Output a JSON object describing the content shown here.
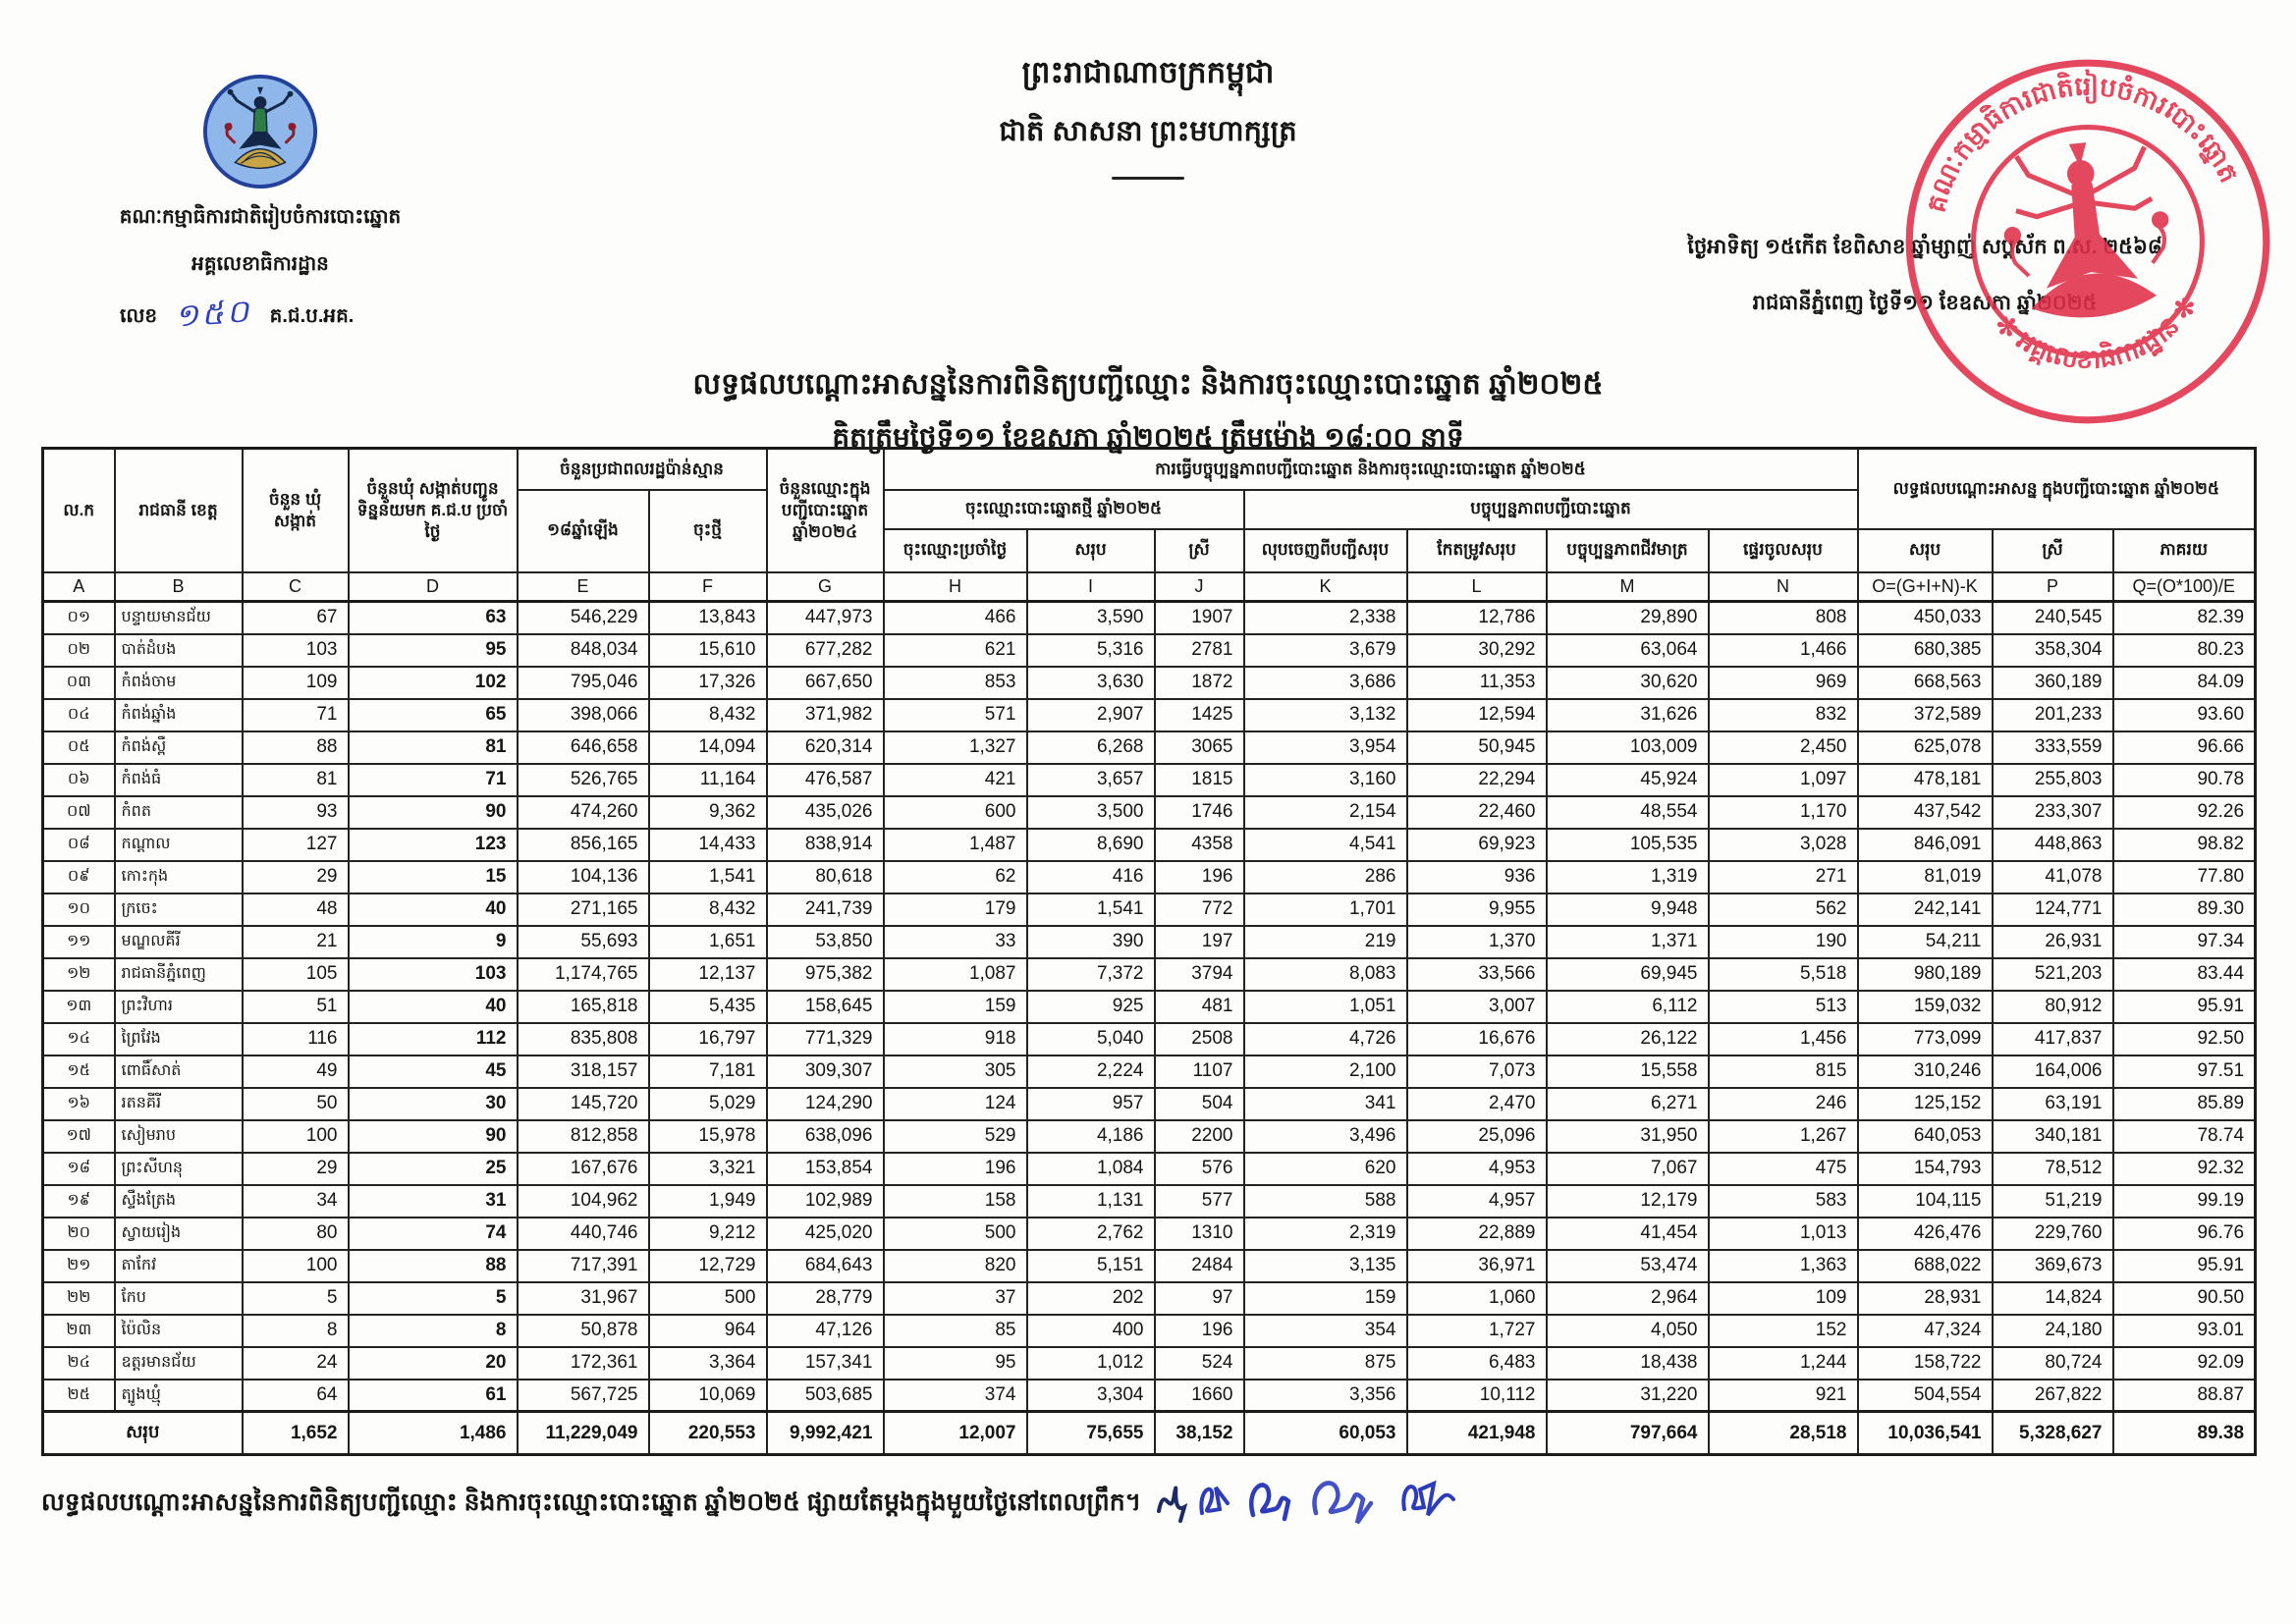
{
  "page": {
    "kingdom": {
      "line1": "ព្រះរាជាណាចក្រកម្ពុជា",
      "line2": "ជាតិ សាសនា ព្រះមហាក្សត្រ"
    },
    "agency": {
      "name": "គណៈកម្មាធិការជាតិរៀបចំការបោះឆ្នោត",
      "department": "អគ្គលេខាធិការដ្ឋាន",
      "ref_label": "លេខ",
      "ref_number": "១៥០",
      "ref_suffix": "គ.ជ.ប.អគ."
    },
    "dateline": {
      "line1": "ថ្ងៃអាទិត្យ ១៥កើត ខែពិសាខ ឆ្នាំម្សាញ់ សប្តស័ក ព.ស. ២៥៦៨",
      "line2": "រាជធានីភ្នំពេញ ថ្ងៃទី១១ ខែឧសភា ឆ្នាំ២០២៥"
    },
    "title": {
      "line1": "លទ្ធផលបណ្ដោះអាសន្ននៃការពិនិត្យបញ្ជីឈ្មោះ និងការចុះឈ្មោះបោះឆ្នោត ឆ្នាំ២០២៥",
      "line2": "គិតត្រឹមថ្ងៃទី១១ ខែឧសភា ឆ្នាំ២០២៥ ត្រឹមម៉ោង ១៨:០០ នាទី"
    },
    "stamp": {
      "ring_text_top": "គណៈកម្មាធិការជាតិរៀបចំការបោះឆ្នោត",
      "ring_text_bottom": "✻ អគ្គលេខាធិការដ្ឋាន ✻",
      "color": "#e0304a"
    },
    "footer": {
      "note": "លទ្ធផលបណ្ដោះអាសន្ននៃការពិនិត្យបញ្ជីឈ្មោះ និងការចុះឈ្មោះបោះឆ្នោត ឆ្នាំ២០២៥ ផ្សាយតែម្តងក្នុងមួយថ្ងៃនៅពេលព្រឹក។"
    },
    "colors": {
      "ink": "#151515",
      "blue_ink": "#2d3cbb",
      "stamp_red": "#e0304a",
      "logo_disc_blue": "#8fb7ea",
      "logo_rim_blue": "#23409a"
    }
  },
  "table": {
    "headers": {
      "col_a": "ល.ក",
      "col_b": "រាជធានី ខេត្ត",
      "col_c": "ចំនួន ឃុំ សង្កាត់",
      "col_d": "ចំនួនឃុំ សង្កាត់បញ្ជូន ទិន្នន័យមក គ.ជ.ប ប្រចាំថ្ងៃ",
      "group_ef": "ចំនួនប្រជាពលរដ្ឋប៉ាន់ស្មាន",
      "col_e": "១៨ឆ្នាំឡើង",
      "col_f": "ចុះថ្មី",
      "col_g": "ចំនួនឈ្មោះក្នុង បញ្ជីបោះឆ្នោត ឆ្នាំ២០២៤",
      "group_hn": "ការធ្វើបច្ចុប្បន្នភាពបញ្ជីបោះឆ្នោត និងការចុះឈ្មោះបោះឆ្នោត ឆ្នាំ២០២៥",
      "group_hj": "ចុះឈ្មោះបោះឆ្នោតថ្មី ឆ្នាំ២០២៥",
      "col_h": "ចុះឈ្មោះប្រចាំថ្ងៃ",
      "col_i": "សរុប",
      "col_j": "ស្រី",
      "group_kn": "បច្ចុប្បន្នភាពបញ្ជីបោះឆ្នោត",
      "col_k": "លុបចេញពីបញ្ជីសរុប",
      "col_l": "កែតម្រូវសរុប",
      "col_m": "បច្ចុប្បន្នភាពជីវមាត្រ",
      "col_n": "ផ្ទេរចូលសរុប",
      "group_oq": "លទ្ធផលបណ្ដោះអាសន្ន ក្នុងបញ្ជីបោះឆ្នោត ឆ្នាំ២០២៥",
      "col_o": "សរុប",
      "col_p": "ស្រី",
      "col_q": "ភាគរយ"
    },
    "letters": [
      "A",
      "B",
      "C",
      "D",
      "E",
      "F",
      "G",
      "H",
      "I",
      "J",
      "K",
      "L",
      "M",
      "N",
      "O=(G+I+N)-K",
      "P",
      "Q=(O*100)/E"
    ],
    "rows": [
      {
        "no": "០១",
        "province": "បន្ទាយមានជ័យ",
        "values": [
          "67",
          "63",
          "546,229",
          "13,843",
          "447,973",
          "466",
          "3,590",
          "1907",
          "2,338",
          "12,786",
          "29,890",
          "808",
          "450,033",
          "240,545",
          "82.39"
        ]
      },
      {
        "no": "០២",
        "province": "បាត់ដំបង",
        "values": [
          "103",
          "95",
          "848,034",
          "15,610",
          "677,282",
          "621",
          "5,316",
          "2781",
          "3,679",
          "30,292",
          "63,064",
          "1,466",
          "680,385",
          "358,304",
          "80.23"
        ]
      },
      {
        "no": "០៣",
        "province": "កំពង់ចាម",
        "values": [
          "109",
          "102",
          "795,046",
          "17,326",
          "667,650",
          "853",
          "3,630",
          "1872",
          "3,686",
          "11,353",
          "30,620",
          "969",
          "668,563",
          "360,189",
          "84.09"
        ]
      },
      {
        "no": "០៤",
        "province": "កំពង់ឆ្នាំង",
        "values": [
          "71",
          "65",
          "398,066",
          "8,432",
          "371,982",
          "571",
          "2,907",
          "1425",
          "3,132",
          "12,594",
          "31,626",
          "832",
          "372,589",
          "201,233",
          "93.60"
        ]
      },
      {
        "no": "០៥",
        "province": "កំពង់ស្ពឺ",
        "values": [
          "88",
          "81",
          "646,658",
          "14,094",
          "620,314",
          "1,327",
          "6,268",
          "3065",
          "3,954",
          "50,945",
          "103,009",
          "2,450",
          "625,078",
          "333,559",
          "96.66"
        ]
      },
      {
        "no": "០៦",
        "province": "កំពង់ធំ",
        "values": [
          "81",
          "71",
          "526,765",
          "11,164",
          "476,587",
          "421",
          "3,657",
          "1815",
          "3,160",
          "22,294",
          "45,924",
          "1,097",
          "478,181",
          "255,803",
          "90.78"
        ]
      },
      {
        "no": "០៧",
        "province": "កំពត",
        "values": [
          "93",
          "90",
          "474,260",
          "9,362",
          "435,026",
          "600",
          "3,500",
          "1746",
          "2,154",
          "22,460",
          "48,554",
          "1,170",
          "437,542",
          "233,307",
          "92.26"
        ]
      },
      {
        "no": "០៨",
        "province": "កណ្តាល",
        "values": [
          "127",
          "123",
          "856,165",
          "14,433",
          "838,914",
          "1,487",
          "8,690",
          "4358",
          "4,541",
          "69,923",
          "105,535",
          "3,028",
          "846,091",
          "448,863",
          "98.82"
        ]
      },
      {
        "no": "០៩",
        "province": "កោះកុង",
        "values": [
          "29",
          "15",
          "104,136",
          "1,541",
          "80,618",
          "62",
          "416",
          "196",
          "286",
          "936",
          "1,319",
          "271",
          "81,019",
          "41,078",
          "77.80"
        ]
      },
      {
        "no": "១០",
        "province": "ក្រចេះ",
        "values": [
          "48",
          "40",
          "271,165",
          "8,432",
          "241,739",
          "179",
          "1,541",
          "772",
          "1,701",
          "9,955",
          "9,948",
          "562",
          "242,141",
          "124,771",
          "89.30"
        ]
      },
      {
        "no": "១១",
        "province": "មណ្ឌលគីរី",
        "values": [
          "21",
          "9",
          "55,693",
          "1,651",
          "53,850",
          "33",
          "390",
          "197",
          "219",
          "1,370",
          "1,371",
          "190",
          "54,211",
          "26,931",
          "97.34"
        ]
      },
      {
        "no": "១២",
        "province": "រាជធានីភ្នំពេញ",
        "values": [
          "105",
          "103",
          "1,174,765",
          "12,137",
          "975,382",
          "1,087",
          "7,372",
          "3794",
          "8,083",
          "33,566",
          "69,945",
          "5,518",
          "980,189",
          "521,203",
          "83.44"
        ]
      },
      {
        "no": "១៣",
        "province": "ព្រះវិហារ",
        "values": [
          "51",
          "40",
          "165,818",
          "5,435",
          "158,645",
          "159",
          "925",
          "481",
          "1,051",
          "3,007",
          "6,112",
          "513",
          "159,032",
          "80,912",
          "95.91"
        ]
      },
      {
        "no": "១៤",
        "province": "ព្រៃវែង",
        "values": [
          "116",
          "112",
          "835,808",
          "16,797",
          "771,329",
          "918",
          "5,040",
          "2508",
          "4,726",
          "16,676",
          "26,122",
          "1,456",
          "773,099",
          "417,837",
          "92.50"
        ]
      },
      {
        "no": "១៥",
        "province": "ពោធិ៍សាត់",
        "values": [
          "49",
          "45",
          "318,157",
          "7,181",
          "309,307",
          "305",
          "2,224",
          "1107",
          "2,100",
          "7,073",
          "15,558",
          "815",
          "310,246",
          "164,006",
          "97.51"
        ]
      },
      {
        "no": "១៦",
        "province": "រតនគីរី",
        "values": [
          "50",
          "30",
          "145,720",
          "5,029",
          "124,290",
          "124",
          "957",
          "504",
          "341",
          "2,470",
          "6,271",
          "246",
          "125,152",
          "63,191",
          "85.89"
        ]
      },
      {
        "no": "១៧",
        "province": "សៀមរាប",
        "values": [
          "100",
          "90",
          "812,858",
          "15,978",
          "638,096",
          "529",
          "4,186",
          "2200",
          "3,496",
          "25,096",
          "31,950",
          "1,267",
          "640,053",
          "340,181",
          "78.74"
        ]
      },
      {
        "no": "១៨",
        "province": "ព្រះសីហនុ",
        "values": [
          "29",
          "25",
          "167,676",
          "3,321",
          "153,854",
          "196",
          "1,084",
          "576",
          "620",
          "4,953",
          "7,067",
          "475",
          "154,793",
          "78,512",
          "92.32"
        ]
      },
      {
        "no": "១៩",
        "province": "ស្ទឹងត្រែង",
        "values": [
          "34",
          "31",
          "104,962",
          "1,949",
          "102,989",
          "158",
          "1,131",
          "577",
          "588",
          "4,957",
          "12,179",
          "583",
          "104,115",
          "51,219",
          "99.19"
        ]
      },
      {
        "no": "២០",
        "province": "ស្វាយរៀង",
        "values": [
          "80",
          "74",
          "440,746",
          "9,212",
          "425,020",
          "500",
          "2,762",
          "1310",
          "2,319",
          "22,889",
          "41,454",
          "1,013",
          "426,476",
          "229,760",
          "96.76"
        ]
      },
      {
        "no": "២១",
        "province": "តាកែវ",
        "values": [
          "100",
          "88",
          "717,391",
          "12,729",
          "684,643",
          "820",
          "5,151",
          "2484",
          "3,135",
          "36,971",
          "53,474",
          "1,363",
          "688,022",
          "369,673",
          "95.91"
        ]
      },
      {
        "no": "២២",
        "province": "កែប",
        "values": [
          "5",
          "5",
          "31,967",
          "500",
          "28,779",
          "37",
          "202",
          "97",
          "159",
          "1,060",
          "2,964",
          "109",
          "28,931",
          "14,824",
          "90.50"
        ]
      },
      {
        "no": "២៣",
        "province": "ប៉ៃលិន",
        "values": [
          "8",
          "8",
          "50,878",
          "964",
          "47,126",
          "85",
          "400",
          "196",
          "354",
          "1,727",
          "4,050",
          "152",
          "47,324",
          "24,180",
          "93.01"
        ]
      },
      {
        "no": "២៤",
        "province": "ឧត្តរមានជ័យ",
        "values": [
          "24",
          "20",
          "172,361",
          "3,364",
          "157,341",
          "95",
          "1,012",
          "524",
          "875",
          "6,483",
          "18,438",
          "1,244",
          "158,722",
          "80,724",
          "92.09"
        ]
      },
      {
        "no": "២៥",
        "province": "ត្បូងឃ្មុំ",
        "values": [
          "64",
          "61",
          "567,725",
          "10,069",
          "503,685",
          "374",
          "3,304",
          "1660",
          "3,356",
          "10,112",
          "31,220",
          "921",
          "504,554",
          "267,822",
          "88.87"
        ]
      }
    ],
    "total": {
      "label": "សរុប",
      "values": [
        "1,652",
        "1,486",
        "11,229,049",
        "220,553",
        "9,992,421",
        "12,007",
        "75,655",
        "38,152",
        "60,053",
        "421,948",
        "797,664",
        "28,518",
        "10,036,541",
        "5,328,627",
        "89.38"
      ]
    }
  }
}
